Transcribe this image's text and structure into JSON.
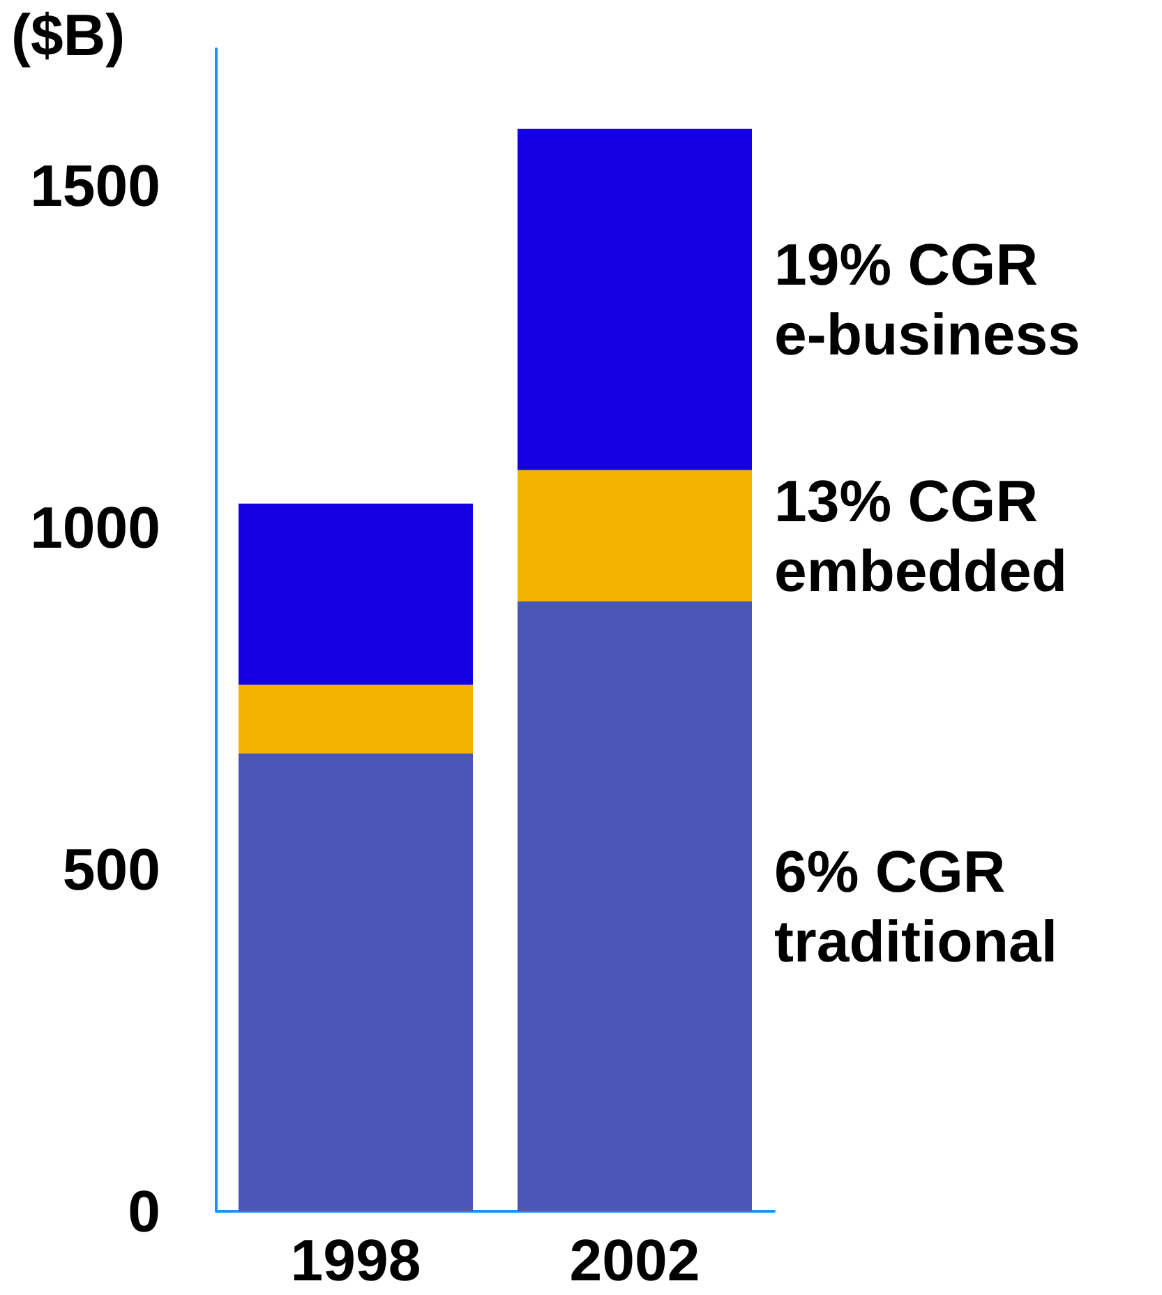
{
  "chart_data": {
    "type": "bar",
    "ylabel": "($B)",
    "categories": [
      "1998",
      "2002"
    ],
    "stacked": true,
    "series": [
      {
        "name": "6% CGR traditional",
        "color": "#4a55b8",
        "values": [
          670,
          892
        ]
      },
      {
        "name": "13% CGR embedded",
        "color": "#f2b400",
        "values": [
          100,
          192
        ]
      },
      {
        "name": "19% CGR e-business",
        "color": "#1400e0",
        "values": [
          265,
          499
        ]
      }
    ],
    "ylim": [
      0,
      1700
    ],
    "yticks": [
      0,
      500,
      1000,
      1500
    ],
    "grid": false,
    "legend": false
  }
}
